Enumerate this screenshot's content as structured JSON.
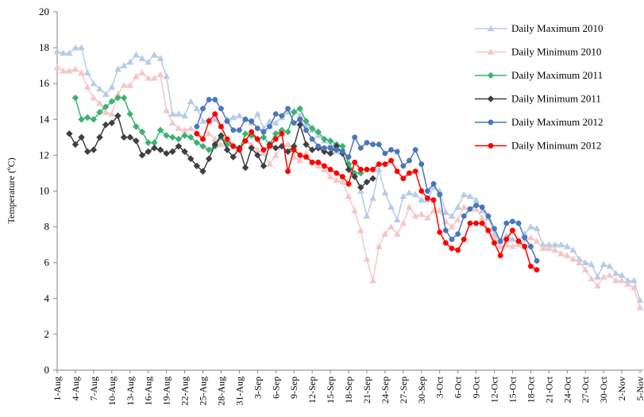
{
  "chart_data": {
    "type": "line",
    "y_label": "Temperature (ºC)",
    "ylim": [
      0,
      20
    ],
    "yticks": [
      0,
      2,
      4,
      6,
      8,
      10,
      12,
      14,
      16,
      18,
      20
    ],
    "grid": false,
    "legend": "top-right",
    "categories": [
      "1-Aug",
      null,
      null,
      "4-Aug",
      null,
      null,
      "7-Aug",
      null,
      null,
      "10-Aug",
      null,
      null,
      "13-Aug",
      null,
      null,
      "16-Aug",
      null,
      null,
      "19-Aug",
      null,
      null,
      "22-Aug",
      null,
      null,
      "25-Aug",
      null,
      null,
      "28-Aug",
      null,
      null,
      "31-Aug",
      null,
      null,
      "3-Sep",
      null,
      null,
      "6-Sep",
      null,
      null,
      "9-Sep",
      null,
      null,
      "12-Sep",
      null,
      null,
      "15-Sep",
      null,
      null,
      "18-Sep",
      null,
      null,
      "21-Sep",
      null,
      null,
      "24-Sep",
      null,
      null,
      "27-Sep",
      null,
      null,
      "30-Sep",
      null,
      null,
      "3-Oct",
      null,
      null,
      "6-Oct",
      null,
      null,
      "9-Oct",
      null,
      null,
      "12-Oct",
      null,
      null,
      "15-Oct",
      null,
      null,
      "18-Oct",
      null,
      null,
      "21-Oct",
      null,
      null,
      "24-Oct",
      null,
      null,
      "27-Oct",
      null,
      null,
      "30-Oct",
      null,
      null,
      "2-Nov",
      null,
      null,
      "5-Nov"
    ],
    "series": [
      {
        "name": "Daily Maximum 2010",
        "color": "#b7cbe8",
        "marker": "triangle",
        "values": [
          17.8,
          17.7,
          17.7,
          18.0,
          18.0,
          16.6,
          16.0,
          15.7,
          15.4,
          15.8,
          16.8,
          17.0,
          17.2,
          17.6,
          17.4,
          17.2,
          17.6,
          17.4,
          16.4,
          14.3,
          14.3,
          14.2,
          15.0,
          14.6,
          13.9,
          14.0,
          14.0,
          13.6,
          14.0,
          14.1,
          14.2,
          14.0,
          13.8,
          14.3,
          13.5,
          13.9,
          13.8,
          14.1,
          14.4,
          14.5,
          14.2,
          13.7,
          13.4,
          13.1,
          12.8,
          12.6,
          12.2,
          12.4,
          11.6,
          11.0,
          10.0,
          8.6,
          9.6,
          11.2,
          9.9,
          9.1,
          8.4,
          9.7,
          9.9,
          9.8,
          9.5,
          9.5,
          10.2,
          10.0,
          8.8,
          8.6,
          9.1,
          9.8,
          9.7,
          9.5,
          8.9,
          8.5,
          7.6,
          7.2,
          7.5,
          7.3,
          7.2,
          7.6,
          8.0,
          7.9,
          7.0,
          7.0,
          7.0,
          7.0,
          6.9,
          6.7,
          6.2,
          6.0,
          5.9,
          5.2,
          5.9,
          5.8,
          5.4,
          5.3,
          5.0,
          5.0,
          3.9
        ]
      },
      {
        "name": "Daily Minimum 2010",
        "color": "#f4c7c7",
        "marker": "triangle",
        "values": [
          16.9,
          16.7,
          16.7,
          16.8,
          16.6,
          15.8,
          15.2,
          14.9,
          14.4,
          14.3,
          15.4,
          15.9,
          15.9,
          16.4,
          16.6,
          16.3,
          16.3,
          16.5,
          14.5,
          13.8,
          13.5,
          13.4,
          13.5,
          13.3,
          12.9,
          13.2,
          12.9,
          12.6,
          12.8,
          12.6,
          12.4,
          12.8,
          12.6,
          12.3,
          12.1,
          11.5,
          12.0,
          12.5,
          12.6,
          11.9,
          11.7,
          12.1,
          11.6,
          11.4,
          11.2,
          10.8,
          10.6,
          10.5,
          9.7,
          8.9,
          7.8,
          6.2,
          5.0,
          6.9,
          7.6,
          8.0,
          7.6,
          8.2,
          9.1,
          8.6,
          8.7,
          8.5,
          8.9,
          8.9,
          8.3,
          8.0,
          8.4,
          9.1,
          9.0,
          9.0,
          8.5,
          7.8,
          7.4,
          6.9,
          7.0,
          6.9,
          7.0,
          7.3,
          7.4,
          7.2,
          6.8,
          6.8,
          6.7,
          6.5,
          6.4,
          6.2,
          6.0,
          5.6,
          5.1,
          4.7,
          5.2,
          5.3,
          5.0,
          5.0,
          4.8,
          4.6,
          3.5
        ]
      },
      {
        "name": "Daily Maximum 2011",
        "color": "#3cb371",
        "marker": "diamond",
        "values": [
          null,
          null,
          null,
          15.2,
          14.0,
          14.1,
          14.0,
          14.4,
          14.7,
          15.0,
          15.2,
          15.2,
          14.3,
          13.6,
          13.3,
          12.7,
          12.7,
          13.4,
          13.1,
          13.0,
          12.9,
          13.1,
          13.0,
          12.7,
          12.5,
          12.3,
          12.5,
          13.0,
          12.6,
          12.5,
          12.3,
          13.2,
          13.1,
          12.9,
          13.0,
          12.6,
          13.2,
          13.4,
          13.3,
          14.4,
          14.6,
          13.9,
          13.5,
          13.3,
          12.9,
          12.8,
          12.6,
          12.5,
          11.5,
          11.0,
          11.0,
          null,
          null,
          null,
          null,
          null,
          null,
          null,
          null,
          null,
          null,
          null,
          null,
          null,
          null,
          null,
          null,
          null,
          null,
          null,
          null,
          null,
          null,
          null,
          null,
          null,
          null,
          null,
          null,
          null,
          null,
          null,
          null,
          null,
          null,
          null,
          null,
          null,
          null,
          null,
          null,
          null,
          null,
          null,
          null,
          null,
          null
        ]
      },
      {
        "name": "Daily Minimum 2011",
        "color": "#404040",
        "marker": "diamond",
        "values": [
          null,
          null,
          13.2,
          12.6,
          13.0,
          12.2,
          12.3,
          13.0,
          13.7,
          13.8,
          14.2,
          13.0,
          13.0,
          12.8,
          12.0,
          12.2,
          12.4,
          12.3,
          12.1,
          12.2,
          12.5,
          12.2,
          11.8,
          11.4,
          11.1,
          11.8,
          12.6,
          13.1,
          12.3,
          11.9,
          12.4,
          11.3,
          12.4,
          12.0,
          11.4,
          12.6,
          12.4,
          12.5,
          12.2,
          12.5,
          13.7,
          12.6,
          12.3,
          12.4,
          12.2,
          12.1,
          12.5,
          12.1,
          11.2,
          10.8,
          10.2,
          10.5,
          10.7,
          null,
          null,
          null,
          null,
          null,
          null,
          null,
          null,
          null,
          null,
          null,
          null,
          null,
          null,
          null,
          null,
          null,
          null,
          null,
          null,
          null,
          null,
          null,
          null,
          null,
          null,
          null,
          null,
          null,
          null,
          null,
          null,
          null,
          null,
          null,
          null,
          null,
          null,
          null,
          null,
          null,
          null,
          null,
          null
        ]
      },
      {
        "name": "Daily Maximum 2012",
        "color": "#4a76bc",
        "marker": "circle",
        "values": [
          null,
          null,
          null,
          null,
          null,
          null,
          null,
          null,
          null,
          null,
          null,
          null,
          null,
          null,
          null,
          null,
          null,
          null,
          null,
          null,
          null,
          null,
          null,
          13.6,
          14.6,
          15.1,
          15.1,
          14.6,
          13.9,
          13.4,
          13.4,
          14.0,
          13.9,
          13.5,
          13.3,
          13.6,
          14.3,
          14.2,
          14.6,
          13.8,
          14.0,
          13.4,
          12.9,
          12.5,
          12.4,
          12.4,
          12.3,
          12.2,
          11.9,
          13.0,
          12.4,
          12.7,
          12.6,
          12.6,
          12.1,
          12.3,
          12.2,
          11.4,
          11.7,
          12.3,
          11.5,
          10.0,
          10.4,
          9.8,
          7.8,
          7.3,
          7.6,
          8.6,
          9.0,
          9.2,
          9.1,
          8.6,
          7.9,
          7.2,
          8.2,
          8.3,
          8.2,
          7.4,
          6.9,
          6.1,
          null,
          null,
          null,
          null,
          null,
          null,
          null,
          null,
          null,
          null,
          null,
          null,
          null,
          null,
          null,
          null,
          null
        ]
      },
      {
        "name": "Daily Minimum 2012",
        "color": "#ff0000",
        "marker": "circle",
        "values": [
          null,
          null,
          null,
          null,
          null,
          null,
          null,
          null,
          null,
          null,
          null,
          null,
          null,
          null,
          null,
          null,
          null,
          null,
          null,
          null,
          null,
          null,
          null,
          13.2,
          12.9,
          13.9,
          14.3,
          13.6,
          12.9,
          12.5,
          12.3,
          12.8,
          13.3,
          12.9,
          12.3,
          12.5,
          12.9,
          13.2,
          11.1,
          12.3,
          12.0,
          11.9,
          11.6,
          11.6,
          11.4,
          11.2,
          11.0,
          10.8,
          10.4,
          11.6,
          11.2,
          11.2,
          11.2,
          11.5,
          11.5,
          11.7,
          11.1,
          10.7,
          11.0,
          11.1,
          10.0,
          9.6,
          9.5,
          7.7,
          7.1,
          6.8,
          6.7,
          7.3,
          8.2,
          8.2,
          8.2,
          7.8,
          7.1,
          6.4,
          7.3,
          7.8,
          7.2,
          6.9,
          5.8,
          5.6,
          null,
          null,
          null,
          null,
          null,
          null,
          null,
          null,
          null,
          null,
          null,
          null,
          null,
          null,
          null,
          null,
          null
        ]
      }
    ]
  }
}
